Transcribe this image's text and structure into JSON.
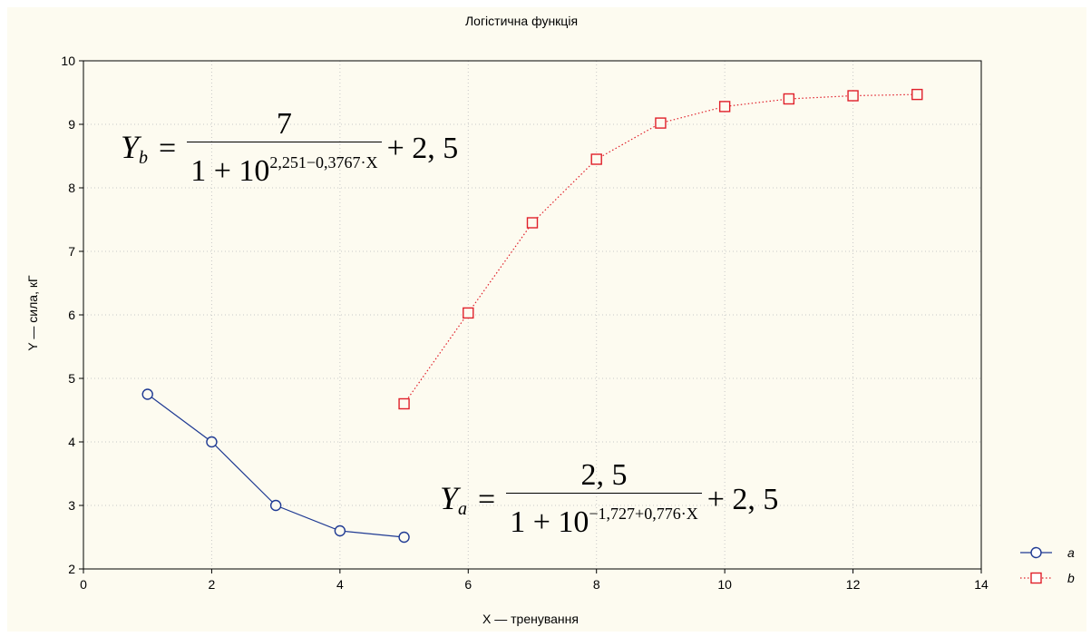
{
  "chart_data": {
    "type": "line",
    "title": "Логістична функція",
    "xlabel": "X — тренування",
    "ylabel": "Y — сила, кГ",
    "xlim": [
      0,
      14
    ],
    "ylim": [
      2,
      10
    ],
    "x_ticks": [
      "0",
      "2",
      "4",
      "6",
      "8",
      "10",
      "12",
      "14"
    ],
    "y_ticks": [
      "2",
      "3",
      "4",
      "5",
      "6",
      "7",
      "8",
      "9",
      "10"
    ],
    "grid": true,
    "legend_position": "bottom-right",
    "series": [
      {
        "name": "a",
        "color": "#1f3a93",
        "marker": "circle",
        "line_style": "solid",
        "x": [
          1,
          2,
          3,
          4,
          5
        ],
        "y": [
          4.75,
          4.0,
          3.0,
          2.6,
          2.5
        ]
      },
      {
        "name": "b",
        "color": "#e0202a",
        "marker": "square",
        "line_style": "dotted",
        "x": [
          5,
          6,
          7,
          8,
          9,
          10,
          11,
          12,
          13
        ],
        "y": [
          4.6,
          6.03,
          7.45,
          8.45,
          9.02,
          9.28,
          9.4,
          9.45,
          9.47
        ]
      }
    ],
    "annotations": {
      "eq_b": {
        "lhs": "Y",
        "sub": "b",
        "equals": "=",
        "numerator": "7",
        "den_base": "1 + 10",
        "den_exp": "2,251−0,3767·X",
        "tail": "+ 2, 5"
      },
      "eq_a": {
        "lhs": "Y",
        "sub": "a",
        "equals": "=",
        "numerator": "2, 5",
        "den_base": "1 + 10",
        "den_exp": "−1,727+0,776·X",
        "tail": "+ 2, 5"
      }
    }
  }
}
